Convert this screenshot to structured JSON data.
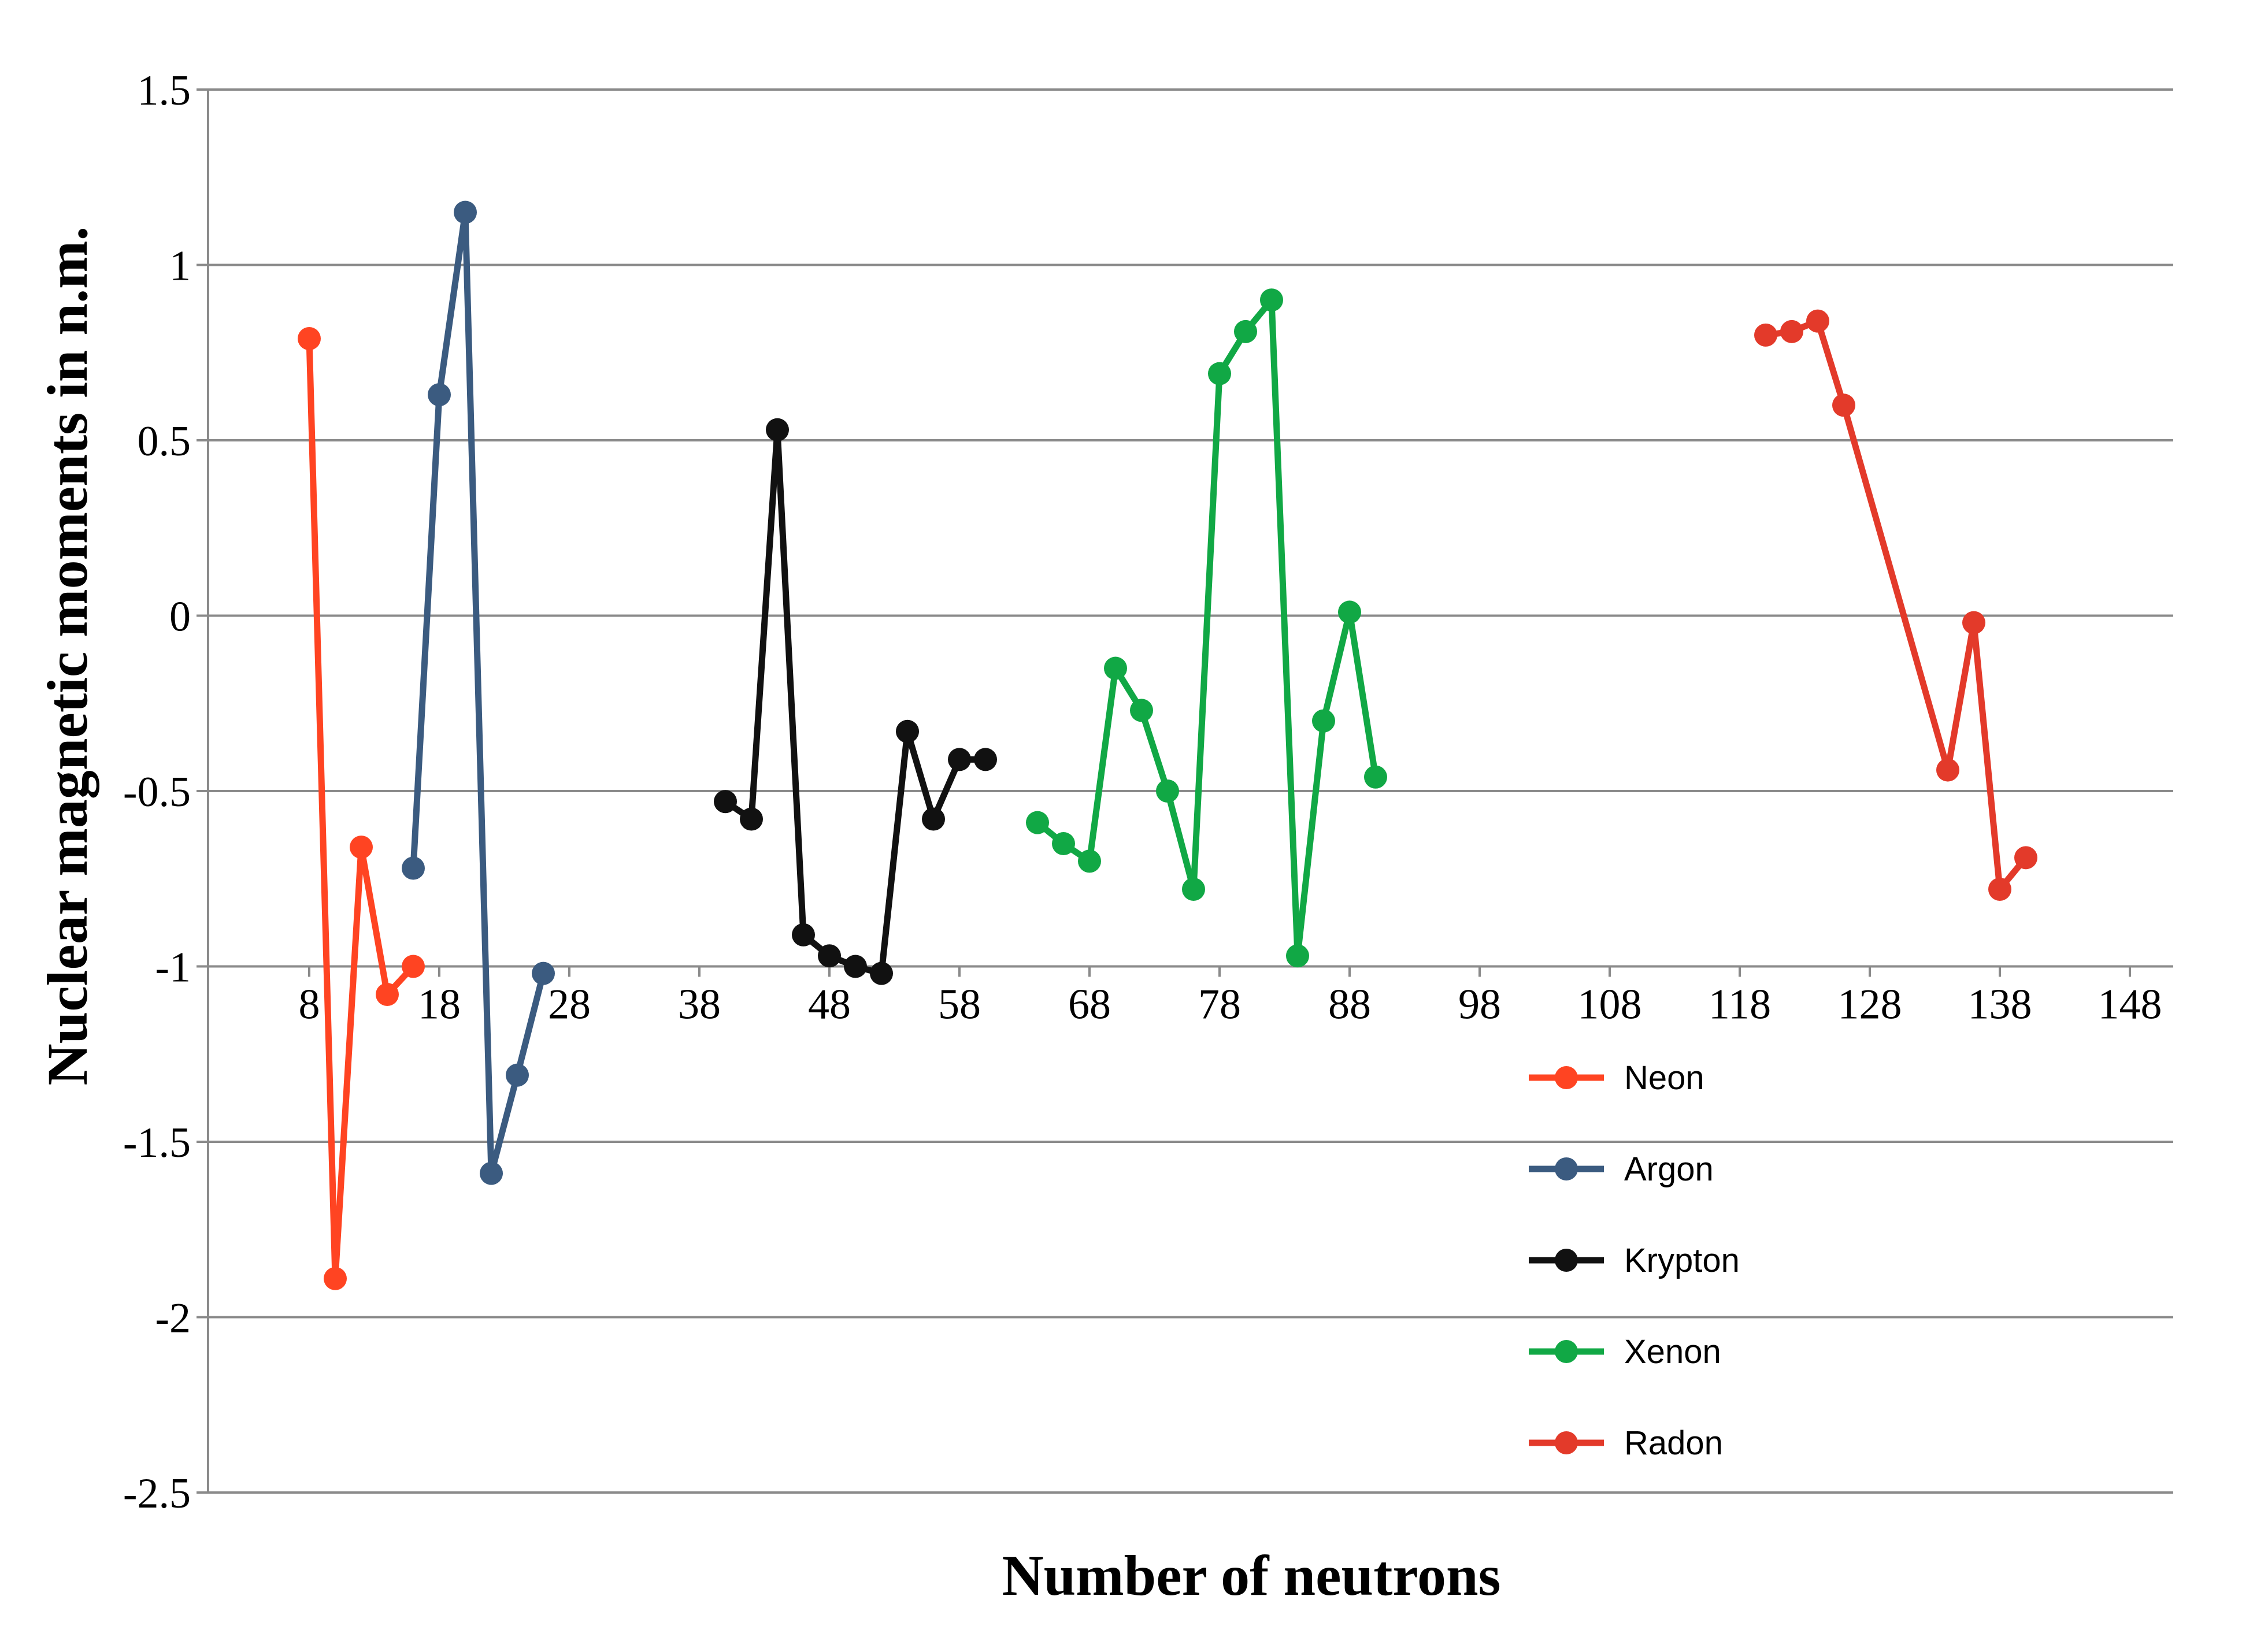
{
  "chart_data": {
    "type": "line",
    "xlabel": "Number of neutrons",
    "ylabel": "Nuclear magnetic moments in n.m.",
    "xlim": [
      0,
      150
    ],
    "ylim": [
      -2.5,
      1.5
    ],
    "x_ticks": [
      "8",
      "18",
      "28",
      "38",
      "48",
      "58",
      "68",
      "78",
      "88",
      "98",
      "108",
      "118",
      "128",
      "138",
      "148"
    ],
    "x_tick_values": [
      8,
      18,
      28,
      38,
      48,
      58,
      68,
      78,
      88,
      98,
      108,
      118,
      128,
      138,
      148
    ],
    "y_ticks": [
      "1.5",
      "1",
      "0.5",
      "0",
      "-0.5",
      "-1",
      "-1.5",
      "-2",
      "-2.5"
    ],
    "y_tick_values": [
      1.5,
      1,
      0.5,
      0,
      -0.5,
      -1,
      -1.5,
      -2,
      -2.5
    ],
    "grid": true,
    "legend_position": "bottom-right",
    "series": [
      {
        "name": "Neon",
        "color": "#ff4422",
        "x": [
          8,
          10,
          12,
          14,
          16
        ],
        "y": [
          0.79,
          -1.89,
          -0.66,
          -1.08,
          -1.0
        ]
      },
      {
        "name": "Argon",
        "color": "#3b5b80",
        "x": [
          16,
          18,
          20,
          22,
          24,
          26
        ],
        "y": [
          -0.72,
          0.63,
          1.15,
          -1.59,
          -1.31,
          -1.02
        ]
      },
      {
        "name": "Krypton",
        "color": "#111111",
        "x": [
          40,
          42,
          44,
          46,
          48,
          50,
          52,
          54,
          56,
          58,
          60
        ],
        "y": [
          -0.53,
          -0.58,
          0.53,
          -0.91,
          -0.97,
          -1.0,
          -1.02,
          -0.33,
          -0.58,
          -0.41,
          -0.41
        ]
      },
      {
        "name": "Xenon",
        "color": "#11a845",
        "x": [
          64,
          66,
          68,
          70,
          72,
          74,
          76,
          78,
          80,
          82,
          84,
          86,
          88,
          90
        ],
        "y": [
          -0.59,
          -0.65,
          -0.7,
          -0.15,
          -0.27,
          -0.5,
          -0.78,
          0.69,
          0.81,
          0.9,
          -0.97,
          -0.3,
          0.01,
          -0.46
        ]
      },
      {
        "name": "Radon",
        "color": "#e33a2a",
        "x": [
          120,
          122,
          124,
          126,
          134,
          136,
          138,
          140
        ],
        "y": [
          0.8,
          0.81,
          0.84,
          0.6,
          -0.44,
          -0.02,
          -0.78,
          -0.69
        ]
      }
    ]
  }
}
